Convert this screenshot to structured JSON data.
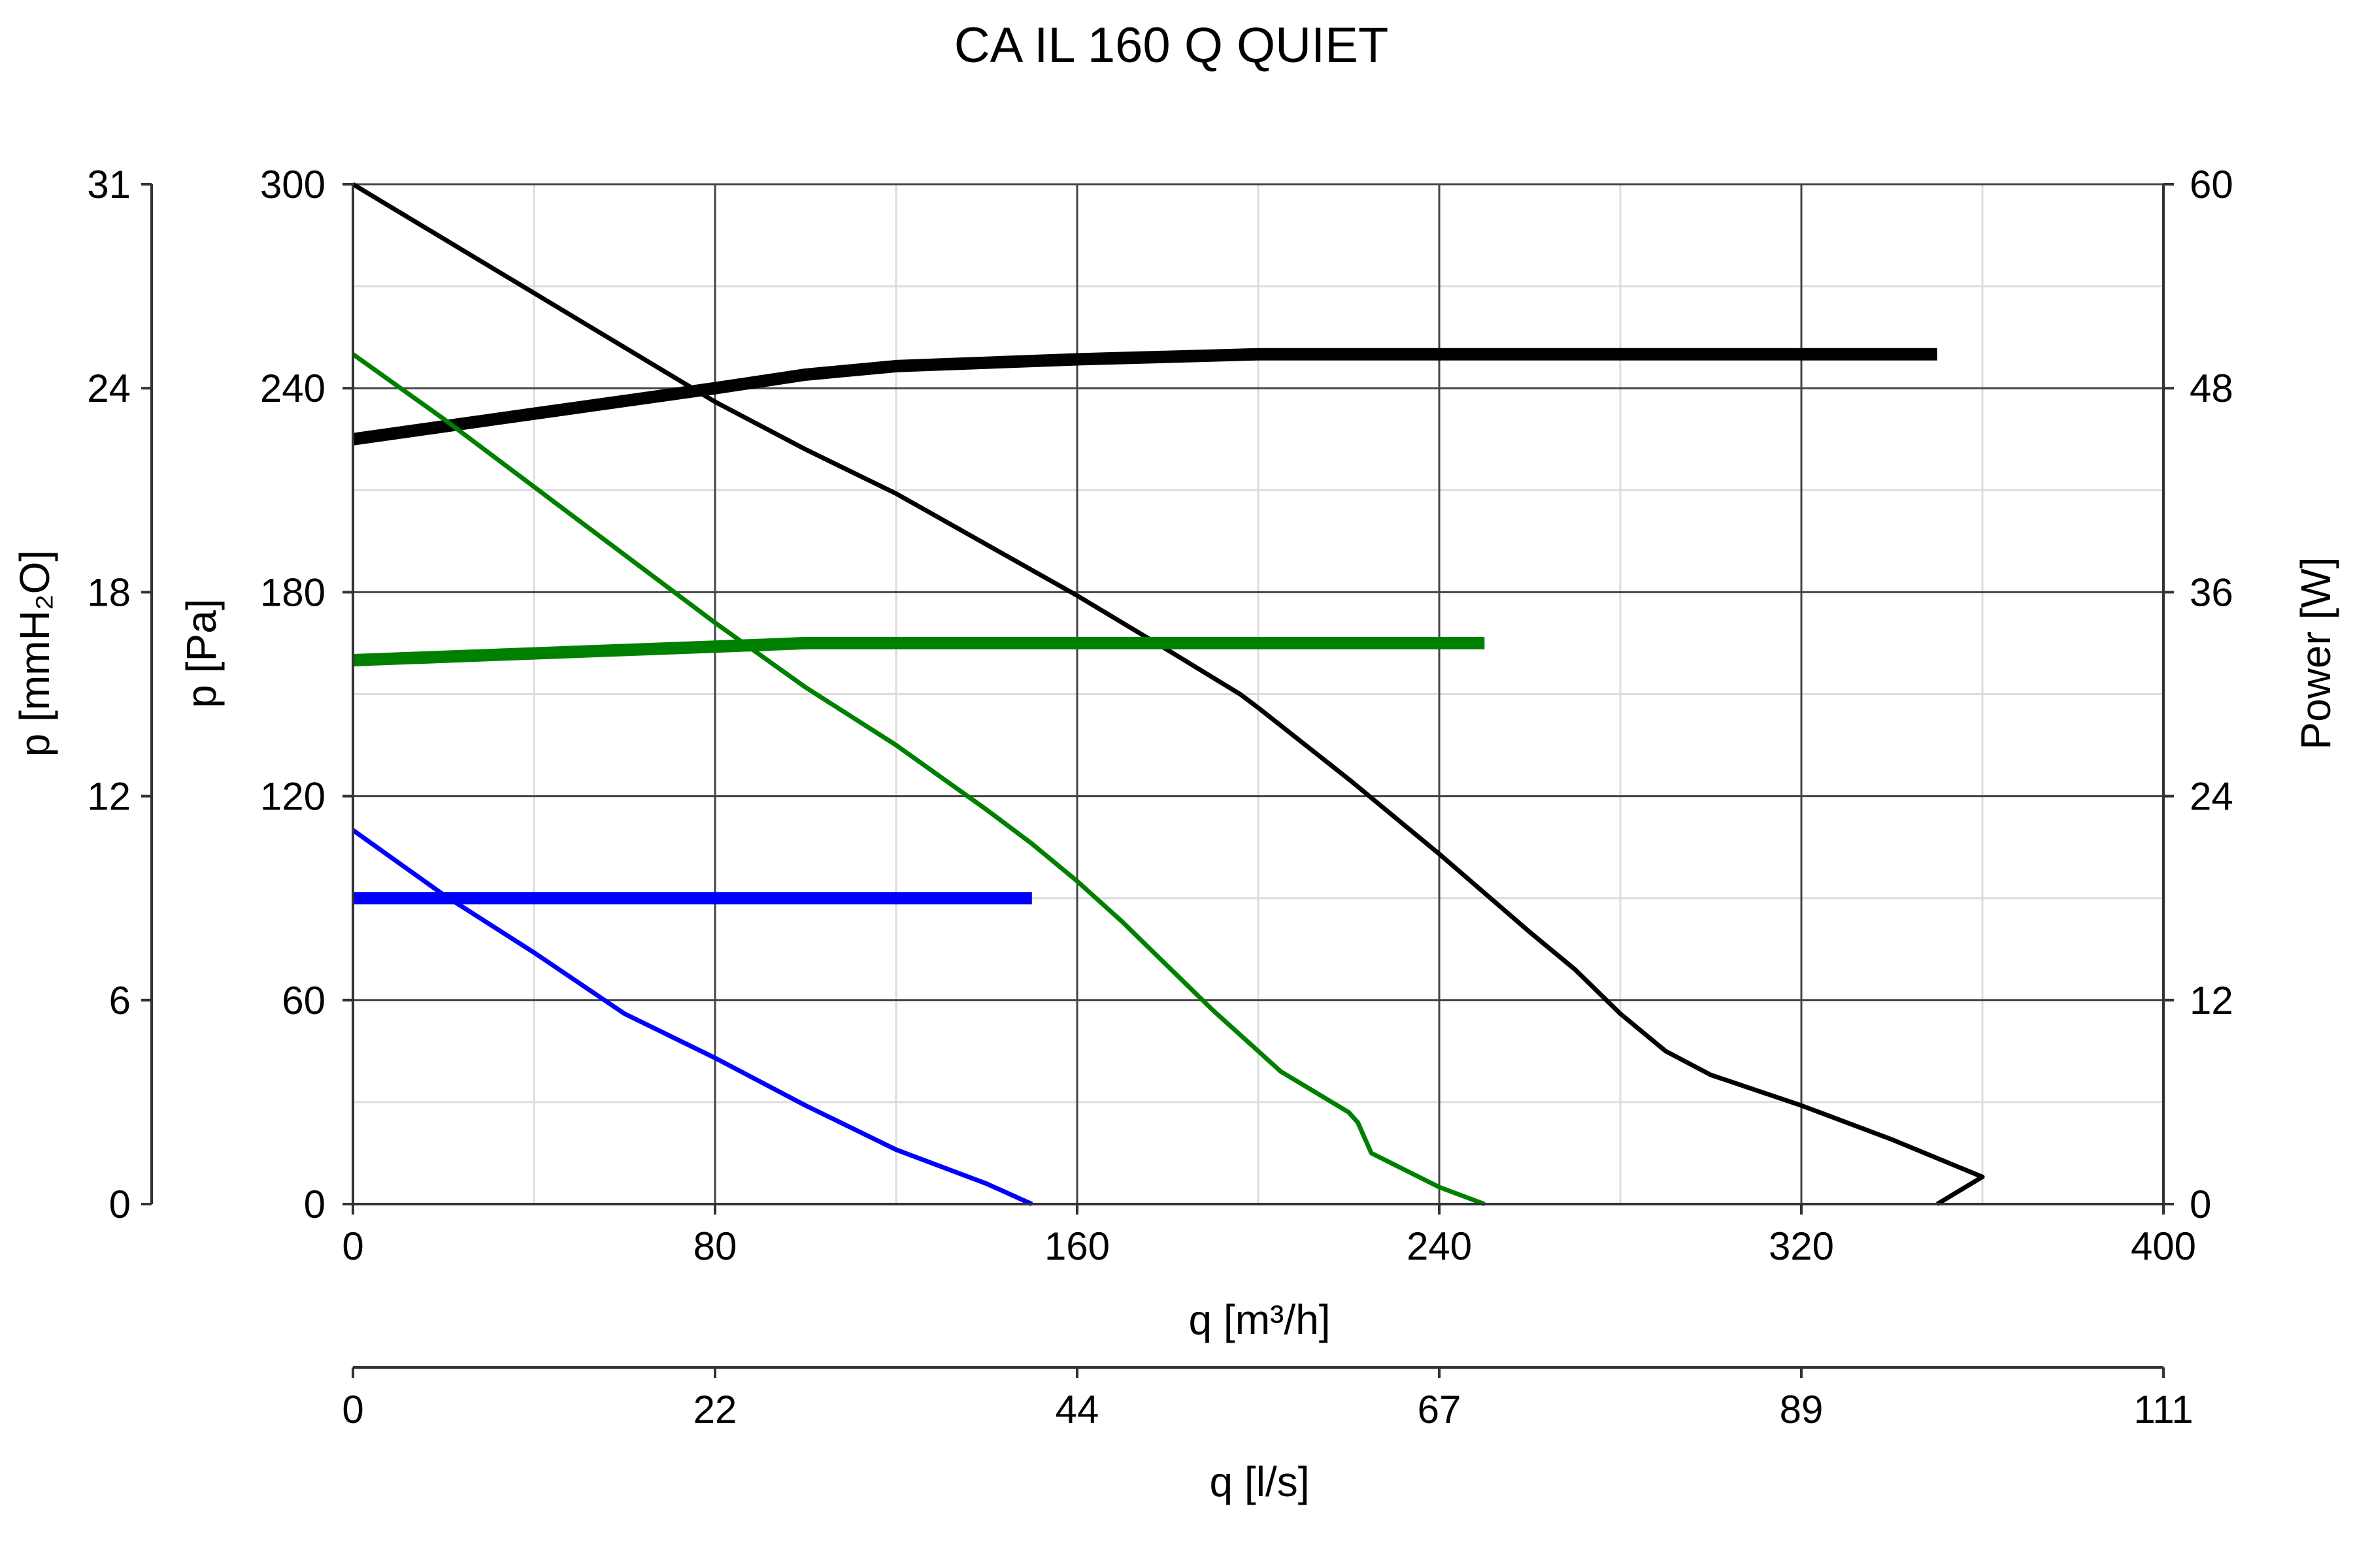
{
  "chart_data": {
    "type": "line",
    "title": "CA IL 160 Q QUIET",
    "x_axis": {
      "label": "q [m³/h]",
      "range": [
        0,
        400
      ],
      "ticks": [
        0,
        80,
        160,
        240,
        320,
        400
      ],
      "minor_step": 40
    },
    "x_axis_secondary": {
      "label": "q [l/s]",
      "tick_labels": [
        "0",
        "22",
        "44",
        "67",
        "89",
        "111"
      ]
    },
    "y_axis": {
      "label": "p [Pa]",
      "range": [
        0,
        300
      ],
      "ticks": [
        0,
        60,
        120,
        180,
        240,
        300
      ],
      "minor_step": 30
    },
    "y_axis_left_outer": {
      "label": "p [mmH₂O]",
      "tick_labels": [
        "0",
        "6",
        "12",
        "18",
        "24",
        "31"
      ]
    },
    "y_axis_right": {
      "label": "Power [W]",
      "range": [
        0,
        60
      ],
      "tick_labels": [
        "0",
        "12",
        "24",
        "36",
        "48",
        "60"
      ]
    },
    "grid": true,
    "series": [
      {
        "kind": "pressure",
        "color": "#000000",
        "points": [
          [
            0,
            300
          ],
          [
            20,
            284
          ],
          [
            40,
            268
          ],
          [
            60,
            252
          ],
          [
            80,
            236
          ],
          [
            100,
            222
          ],
          [
            120,
            209
          ],
          [
            140,
            194
          ],
          [
            160,
            179
          ],
          [
            180,
            163
          ],
          [
            196,
            150
          ],
          [
            200,
            146
          ],
          [
            220,
            125
          ],
          [
            240,
            103
          ],
          [
            260,
            80
          ],
          [
            270,
            69
          ],
          [
            280,
            56
          ],
          [
            290,
            45
          ],
          [
            300,
            38
          ],
          [
            320,
            29
          ],
          [
            340,
            19
          ],
          [
            360,
            8
          ],
          [
            350,
            0
          ]
        ]
      },
      {
        "kind": "power",
        "color": "#000000",
        "points": [
          [
            0,
            45
          ],
          [
            40,
            46.5
          ],
          [
            80,
            48
          ],
          [
            100,
            48.8
          ],
          [
            120,
            49.3
          ],
          [
            160,
            49.7
          ],
          [
            200,
            50
          ],
          [
            250,
            50
          ],
          [
            300,
            50
          ],
          [
            350,
            50
          ]
        ]
      },
      {
        "kind": "pressure",
        "color": "#008000",
        "points": [
          [
            0,
            250
          ],
          [
            20,
            231
          ],
          [
            40,
            211
          ],
          [
            60,
            191
          ],
          [
            80,
            171
          ],
          [
            100,
            152
          ],
          [
            120,
            135
          ],
          [
            140,
            116
          ],
          [
            150,
            106
          ],
          [
            160,
            95
          ],
          [
            170,
            83
          ],
          [
            180,
            70
          ],
          [
            190,
            57
          ],
          [
            200,
            45
          ],
          [
            205,
            39
          ],
          [
            210,
            35
          ],
          [
            220,
            27
          ],
          [
            222,
            24
          ],
          [
            225,
            15
          ],
          [
            240,
            5
          ],
          [
            250,
            0
          ]
        ]
      },
      {
        "kind": "power",
        "color": "#008000",
        "points": [
          [
            0,
            32
          ],
          [
            40,
            32.4
          ],
          [
            80,
            32.8
          ],
          [
            100,
            33
          ],
          [
            150,
            33
          ],
          [
            200,
            33
          ],
          [
            250,
            33
          ]
        ]
      },
      {
        "kind": "pressure",
        "color": "#0000ff",
        "points": [
          [
            0,
            110
          ],
          [
            20,
            91
          ],
          [
            40,
            74
          ],
          [
            60,
            56
          ],
          [
            80,
            43
          ],
          [
            100,
            29
          ],
          [
            120,
            16
          ],
          [
            140,
            6
          ],
          [
            150,
            0
          ]
        ]
      },
      {
        "kind": "power",
        "color": "#0000ff",
        "points": [
          [
            0,
            18
          ],
          [
            150,
            18
          ]
        ]
      }
    ]
  }
}
